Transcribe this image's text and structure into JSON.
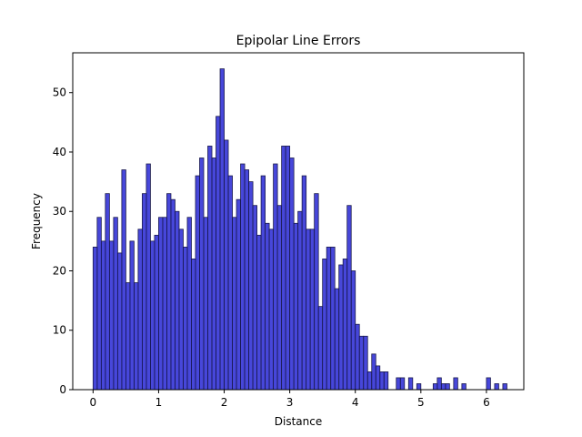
{
  "chart_data": {
    "type": "bar",
    "title": "Epipolar Line Errors",
    "xlabel": "Distance",
    "ylabel": "Frequency",
    "xlim": [
      -0.31,
      6.57
    ],
    "ylim": [
      0,
      56.7
    ],
    "xticks": [
      0,
      1,
      2,
      3,
      4,
      5,
      6
    ],
    "yticks": [
      0,
      10,
      20,
      30,
      40,
      50
    ],
    "bar_color": "#0000cc",
    "bar_edge_color": "#1a1a4d",
    "grid": false,
    "bin_width": 0.0625,
    "bin_start": 0.0,
    "values": [
      24,
      29,
      25,
      33,
      25,
      29,
      23,
      37,
      18,
      25,
      18,
      27,
      33,
      38,
      25,
      26,
      29,
      29,
      33,
      32,
      30,
      27,
      24,
      29,
      22,
      36,
      39,
      29,
      41,
      39,
      46,
      54,
      42,
      36,
      29,
      32,
      38,
      37,
      35,
      31,
      26,
      36,
      28,
      27,
      38,
      31,
      41,
      41,
      39,
      28,
      30,
      36,
      27,
      27,
      33,
      14,
      22,
      24,
      24,
      17,
      21,
      22,
      31,
      20,
      11,
      9,
      9,
      3,
      6,
      4,
      3,
      3,
      0,
      0,
      2,
      2,
      0,
      2,
      0,
      1,
      0,
      0,
      0,
      1,
      2,
      1,
      1,
      0,
      2,
      0,
      1,
      0,
      0,
      0,
      0,
      0,
      2,
      0,
      1,
      0,
      1
    ]
  }
}
